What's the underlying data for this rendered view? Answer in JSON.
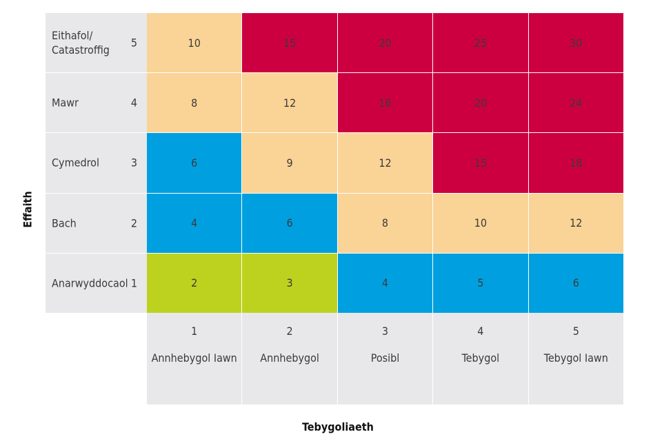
{
  "chart_data": {
    "type": "heatmap",
    "title": "",
    "xlabel": "Tebygoliaeth",
    "ylabel": "Effaith",
    "columns": [
      {
        "num": "1",
        "label": "Annhebygol Iawn"
      },
      {
        "num": "2",
        "label": "Annhebygol"
      },
      {
        "num": "3",
        "label": "Posibl"
      },
      {
        "num": "4",
        "label": "Tebygol"
      },
      {
        "num": "5",
        "label": "Tebygol Iawn"
      }
    ],
    "rows": [
      {
        "num": "5",
        "label": "Eithafol/\nCatastroffig",
        "values": [
          10,
          15,
          20,
          25,
          30
        ],
        "colors": [
          "amber",
          "red",
          "red",
          "red",
          "red"
        ]
      },
      {
        "num": "4",
        "label": "Mawr",
        "values": [
          8,
          12,
          16,
          20,
          24
        ],
        "colors": [
          "amber",
          "amber",
          "red",
          "red",
          "red"
        ]
      },
      {
        "num": "3",
        "label": "Cymedrol",
        "values": [
          6,
          9,
          12,
          15,
          18
        ],
        "colors": [
          "blue",
          "amber",
          "amber",
          "red",
          "red"
        ]
      },
      {
        "num": "2",
        "label": "Bach",
        "values": [
          4,
          6,
          8,
          10,
          12
        ],
        "colors": [
          "blue",
          "blue",
          "amber",
          "amber",
          "amber"
        ]
      },
      {
        "num": "1",
        "label": "Anarwyddocaol",
        "values": [
          2,
          3,
          4,
          5,
          6
        ],
        "colors": [
          "green",
          "green",
          "blue",
          "blue",
          "blue"
        ]
      }
    ],
    "palette": {
      "red": "#cc0041",
      "amber": "#fad396",
      "blue": "#00a0e0",
      "green": "#bdd21e",
      "header": "#e8e8ea"
    }
  }
}
